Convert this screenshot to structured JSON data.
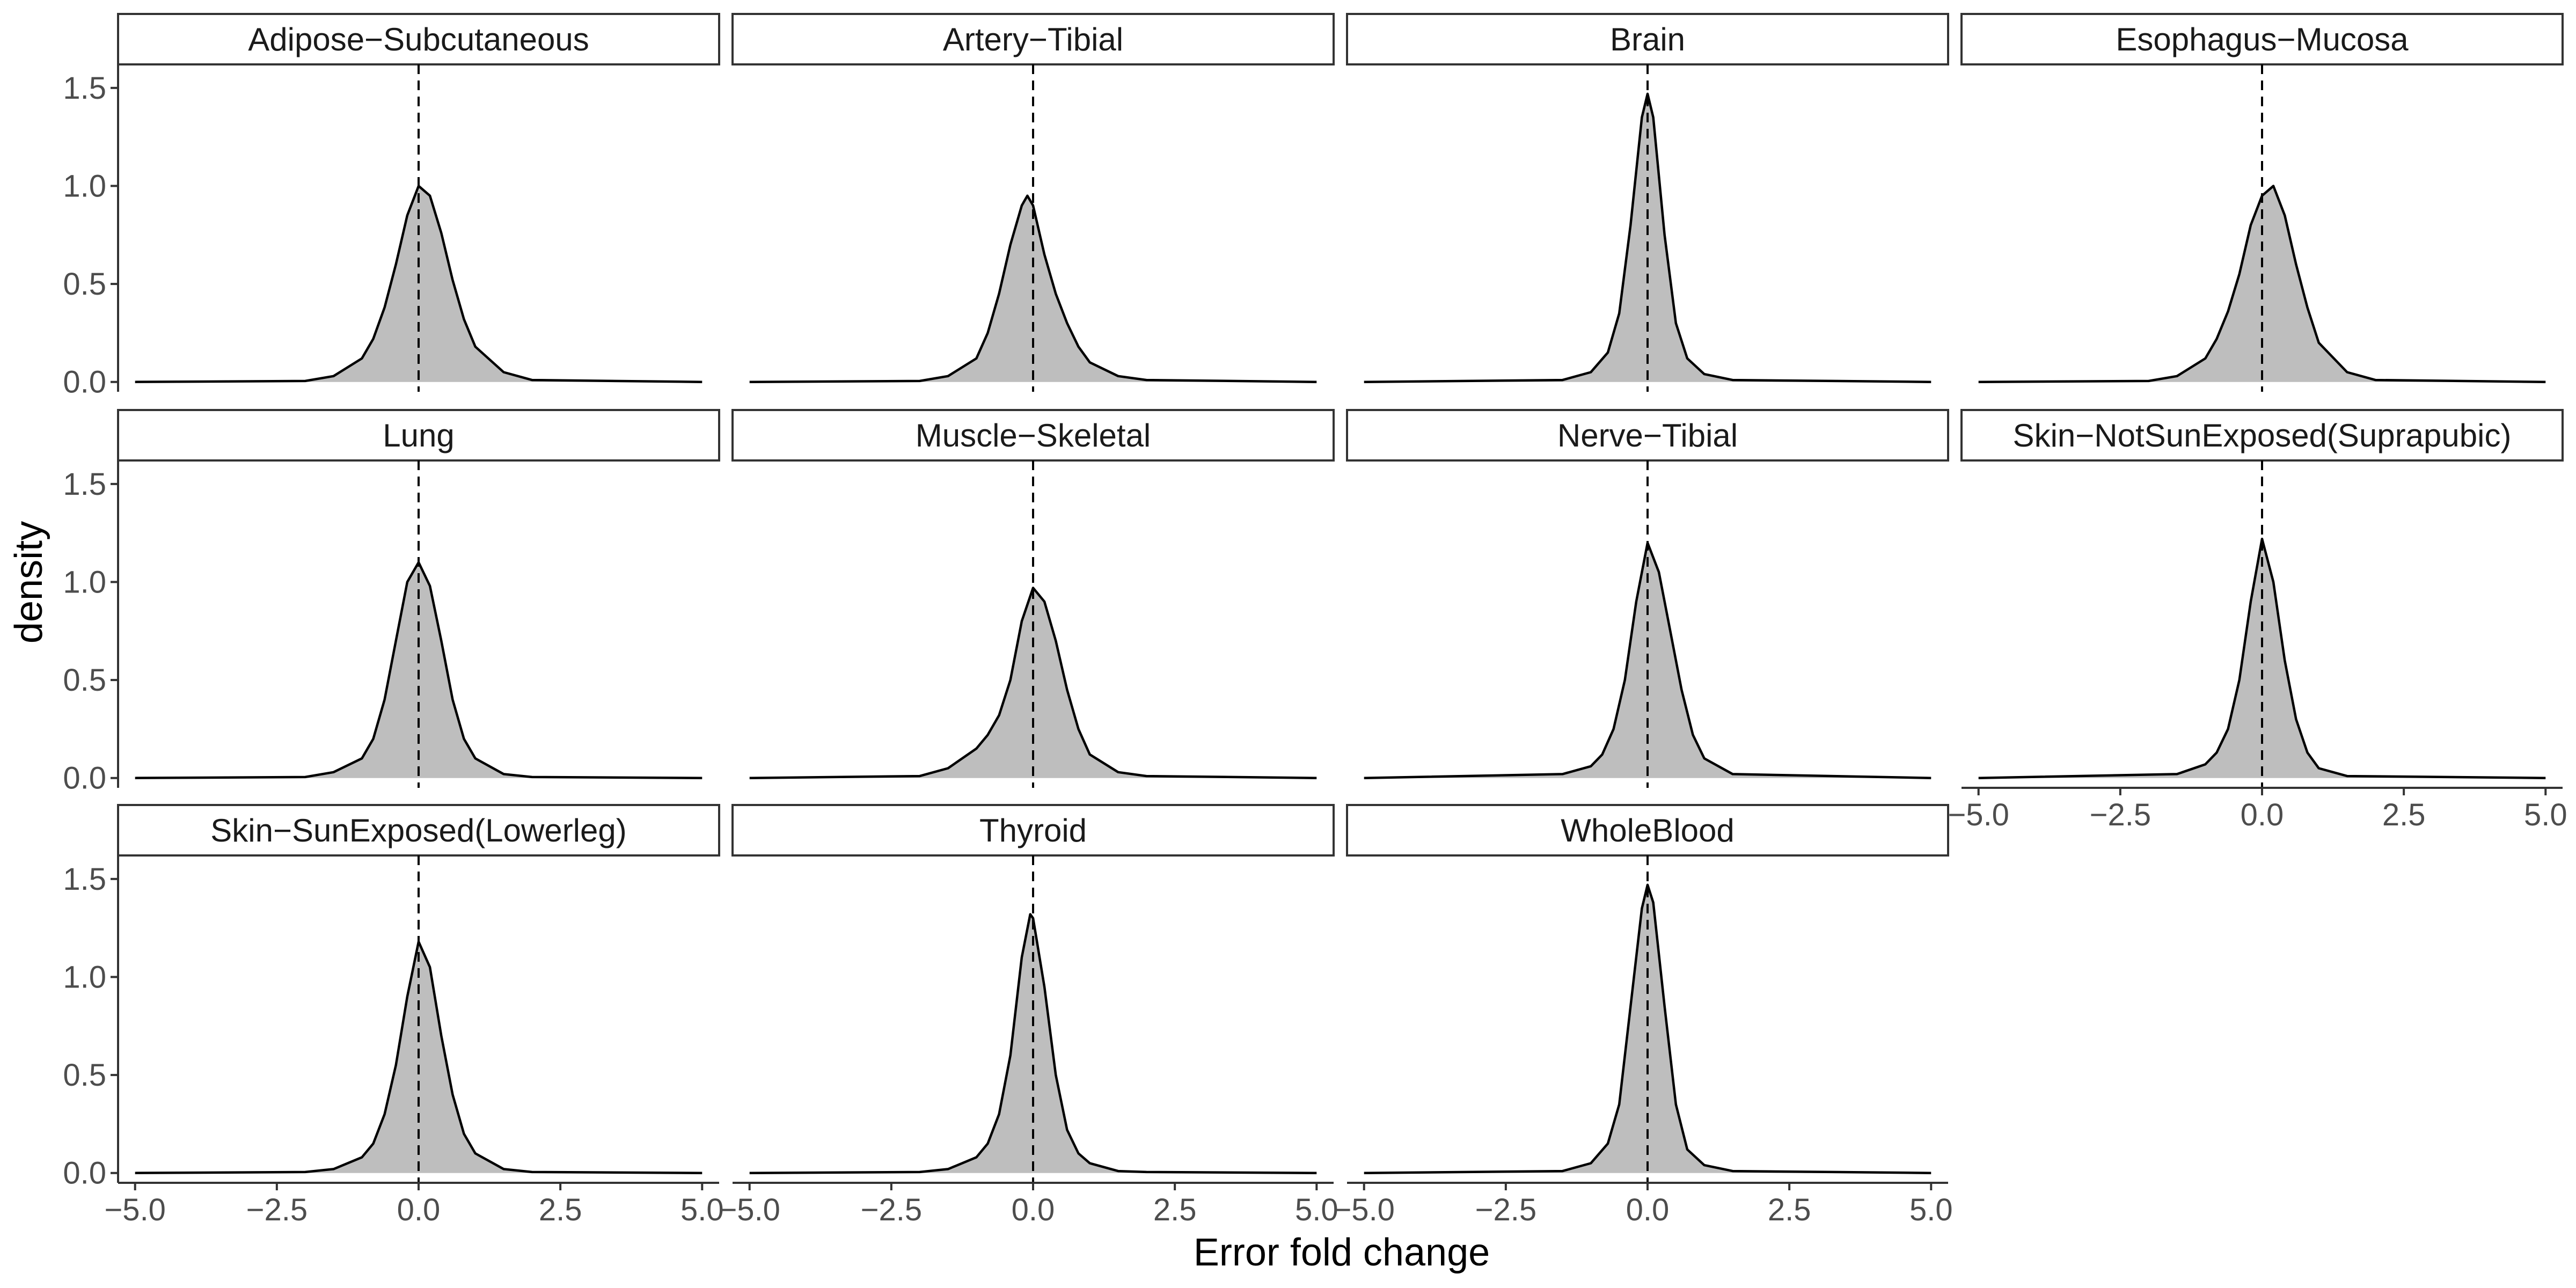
{
  "chart_data": {
    "type": "area",
    "layout": "facet-grid",
    "facet_cols": 4,
    "xlabel": "Error fold change",
    "ylabel": "density",
    "xlim": [
      -5.3,
      5.3
    ],
    "ylim": [
      -0.05,
      1.62
    ],
    "x_ticks": [
      -5.0,
      -2.5,
      0.0,
      2.5,
      5.0
    ],
    "x_tick_labels": [
      "−5.0",
      "−2.5",
      "0.0",
      "2.5",
      "5.0"
    ],
    "y_ticks": [
      0.0,
      0.5,
      1.0,
      1.5
    ],
    "y_tick_labels": [
      "0.0",
      "0.5",
      "1.0",
      "1.5"
    ],
    "reference_line": {
      "x": 0,
      "style": "dashed"
    },
    "grid": false,
    "fill_color": "#bebebe",
    "line_color": "#000000",
    "panels": [
      {
        "name": "Adipose−Subcutaneous",
        "x": [
          -5,
          -2,
          -1.5,
          -1,
          -0.8,
          -0.6,
          -0.4,
          -0.2,
          0,
          0.2,
          0.4,
          0.6,
          0.8,
          1,
          1.5,
          2,
          5
        ],
        "y": [
          0,
          0.005,
          0.03,
          0.12,
          0.22,
          0.38,
          0.6,
          0.85,
          1.0,
          0.95,
          0.76,
          0.52,
          0.32,
          0.18,
          0.05,
          0.01,
          0
        ]
      },
      {
        "name": "Artery−Tibial",
        "x": [
          -5,
          -2,
          -1.5,
          -1,
          -0.8,
          -0.6,
          -0.4,
          -0.2,
          -0.1,
          0,
          0.2,
          0.4,
          0.6,
          0.8,
          1,
          1.5,
          2,
          5
        ],
        "y": [
          0,
          0.005,
          0.03,
          0.12,
          0.25,
          0.45,
          0.7,
          0.9,
          0.95,
          0.9,
          0.65,
          0.45,
          0.3,
          0.18,
          0.1,
          0.03,
          0.01,
          0
        ]
      },
      {
        "name": "Brain",
        "x": [
          -5,
          -1.5,
          -1,
          -0.7,
          -0.5,
          -0.3,
          -0.1,
          0,
          0.1,
          0.3,
          0.5,
          0.7,
          1,
          1.5,
          5
        ],
        "y": [
          0,
          0.01,
          0.05,
          0.15,
          0.35,
          0.8,
          1.35,
          1.47,
          1.35,
          0.75,
          0.3,
          0.12,
          0.04,
          0.01,
          0
        ]
      },
      {
        "name": "Esophagus−Mucosa",
        "x": [
          -5,
          -2,
          -1.5,
          -1,
          -0.8,
          -0.6,
          -0.4,
          -0.2,
          0,
          0.2,
          0.4,
          0.6,
          0.8,
          1,
          1.5,
          2,
          5
        ],
        "y": [
          0,
          0.005,
          0.03,
          0.12,
          0.22,
          0.36,
          0.55,
          0.8,
          0.95,
          1.0,
          0.85,
          0.6,
          0.38,
          0.2,
          0.05,
          0.01,
          0
        ]
      },
      {
        "name": "Lung",
        "x": [
          -5,
          -2,
          -1.5,
          -1,
          -0.8,
          -0.6,
          -0.4,
          -0.2,
          0,
          0.2,
          0.4,
          0.6,
          0.8,
          1,
          1.5,
          2,
          5
        ],
        "y": [
          0,
          0.005,
          0.03,
          0.1,
          0.2,
          0.4,
          0.7,
          1.0,
          1.1,
          0.98,
          0.7,
          0.4,
          0.2,
          0.1,
          0.02,
          0.005,
          0
        ]
      },
      {
        "name": "Muscle−Skeletal",
        "x": [
          -5,
          -2,
          -1.5,
          -1,
          -0.8,
          -0.6,
          -0.4,
          -0.2,
          0,
          0.2,
          0.4,
          0.6,
          0.8,
          1,
          1.5,
          2,
          5
        ],
        "y": [
          0,
          0.01,
          0.05,
          0.15,
          0.22,
          0.32,
          0.5,
          0.8,
          0.97,
          0.9,
          0.7,
          0.45,
          0.25,
          0.12,
          0.03,
          0.01,
          0
        ]
      },
      {
        "name": "Nerve−Tibial",
        "x": [
          -5,
          -1.5,
          -1,
          -0.8,
          -0.6,
          -0.4,
          -0.2,
          0,
          0.2,
          0.4,
          0.6,
          0.8,
          1,
          1.5,
          5
        ],
        "y": [
          0,
          0.02,
          0.06,
          0.12,
          0.25,
          0.5,
          0.9,
          1.2,
          1.05,
          0.75,
          0.45,
          0.22,
          0.1,
          0.02,
          0
        ]
      },
      {
        "name": "Skin−NotSunExposed(Suprapubic)",
        "x": [
          -5,
          -1.5,
          -1,
          -0.8,
          -0.6,
          -0.4,
          -0.2,
          0,
          0.2,
          0.4,
          0.6,
          0.8,
          1,
          1.5,
          5
        ],
        "y": [
          0,
          0.02,
          0.07,
          0.13,
          0.25,
          0.5,
          0.9,
          1.22,
          1.0,
          0.6,
          0.3,
          0.13,
          0.05,
          0.01,
          0
        ]
      },
      {
        "name": "Skin−SunExposed(Lowerleg)",
        "x": [
          -5,
          -2,
          -1.5,
          -1,
          -0.8,
          -0.6,
          -0.4,
          -0.2,
          0,
          0.2,
          0.4,
          0.6,
          0.8,
          1,
          1.5,
          2,
          5
        ],
        "y": [
          0,
          0.005,
          0.02,
          0.08,
          0.15,
          0.3,
          0.55,
          0.9,
          1.18,
          1.05,
          0.7,
          0.4,
          0.2,
          0.1,
          0.02,
          0.005,
          0
        ]
      },
      {
        "name": "Thyroid",
        "x": [
          -5,
          -2,
          -1.5,
          -1,
          -0.8,
          -0.6,
          -0.4,
          -0.2,
          -0.05,
          0,
          0.2,
          0.4,
          0.6,
          0.8,
          1,
          1.5,
          2,
          5
        ],
        "y": [
          0,
          0.005,
          0.02,
          0.08,
          0.15,
          0.3,
          0.6,
          1.1,
          1.32,
          1.3,
          0.95,
          0.5,
          0.22,
          0.1,
          0.05,
          0.01,
          0.005,
          0
        ]
      },
      {
        "name": "WholeBlood",
        "x": [
          -5,
          -1.5,
          -1,
          -0.7,
          -0.5,
          -0.3,
          -0.1,
          0,
          0.1,
          0.3,
          0.5,
          0.7,
          1,
          1.5,
          5
        ],
        "y": [
          0,
          0.01,
          0.05,
          0.15,
          0.35,
          0.85,
          1.35,
          1.47,
          1.38,
          0.85,
          0.35,
          0.12,
          0.04,
          0.01,
          0
        ]
      }
    ]
  }
}
